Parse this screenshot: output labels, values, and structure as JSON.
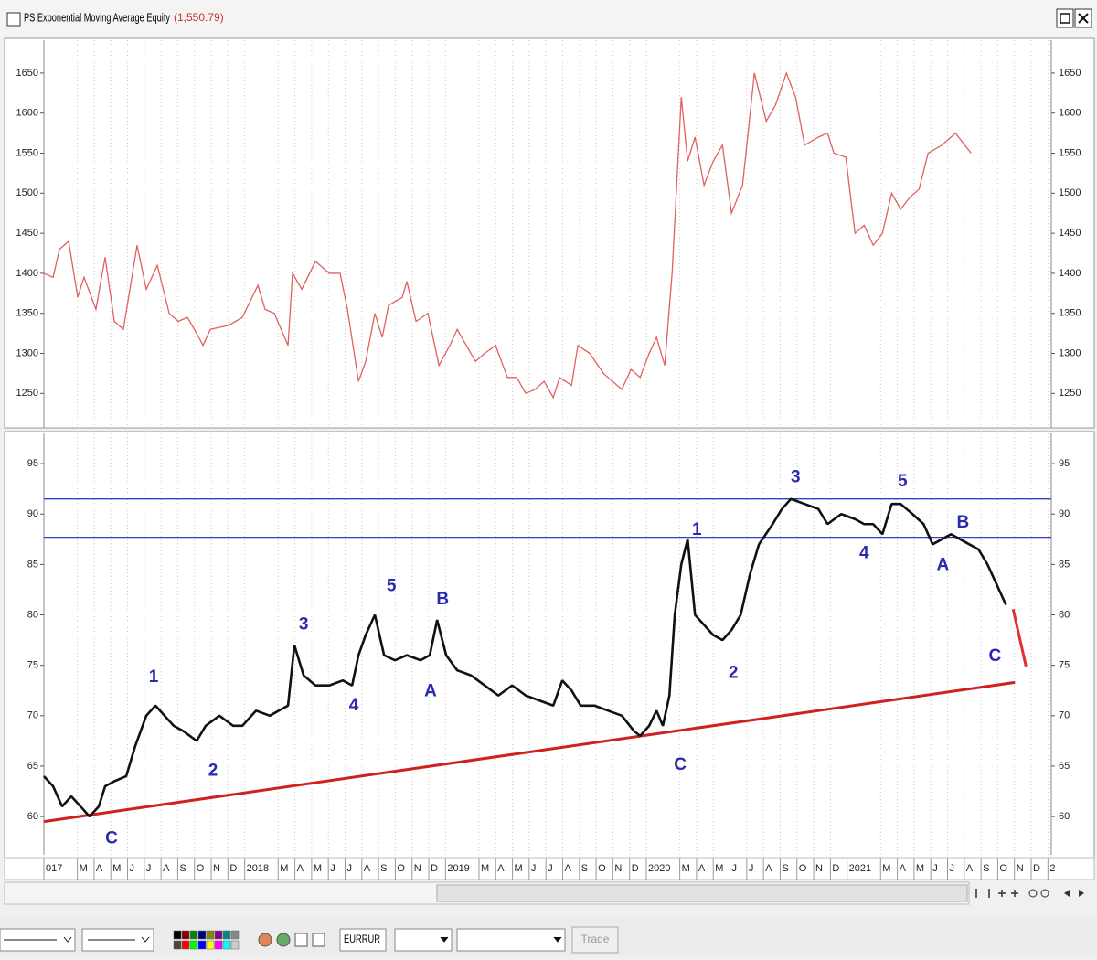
{
  "window": {
    "title": "PS Exponential Moving Average Equity",
    "value_label": "(1,550.79)"
  },
  "toolbar": {
    "symbol": "EURRUR",
    "button": "Trade"
  },
  "chart_data": [
    {
      "type": "line",
      "color": "#e06060",
      "x": [
        0,
        0.55,
        0.93,
        1.48,
        2.02,
        2.4,
        3.11,
        3.66,
        4.21,
        4.75,
        5.57,
        6.12,
        6.78,
        7.49,
        8.03,
        8.58,
        9.13,
        9.51,
        9.95,
        11.04,
        11.86,
        12.79,
        13.22,
        13.77,
        14.59,
        14.86,
        15.41,
        16.23,
        17.05,
        17.7,
        18.14,
        18.8,
        19.23,
        19.78,
        20.22,
        20.6,
        21.42,
        21.69,
        22.24,
        22.95,
        23.61,
        24.26,
        24.7,
        25.79,
        26.34,
        26.99,
        27.7,
        28.25,
        28.8,
        29.34,
        29.89,
        30.44,
        30.82,
        31.53,
        31.91,
        32.62,
        33.44,
        34.54,
        35.08,
        35.63,
        36.17,
        36.61,
        37.1,
        37.54,
        38.09,
        38.47,
        38.91,
        39.45,
        40,
        40.55,
        41.09,
        41.75,
        42.46,
        43.17,
        43.72,
        44.37,
        44.92,
        45.46,
        46.28,
        46.83,
        47.21,
        47.92,
        48.47,
        49.02,
        49.56,
        50.11,
        50.66,
        51.2,
        51.75,
        52.3,
        52.84,
        53.66,
        54.48,
        55.03,
        55.41
      ],
      "values": [
        1400,
        1395,
        1430,
        1440,
        1370,
        1395,
        1355,
        1420,
        1340,
        1330,
        1435,
        1380,
        1410,
        1350,
        1340,
        1345,
        1325,
        1310,
        1330,
        1335,
        1345,
        1385,
        1355,
        1350,
        1310,
        1400,
        1380,
        1415,
        1400,
        1400,
        1355,
        1265,
        1290,
        1350,
        1320,
        1360,
        1370,
        1390,
        1340,
        1350,
        1285,
        1310,
        1330,
        1290,
        1300,
        1310,
        1270,
        1270,
        1250,
        1255,
        1265,
        1245,
        1270,
        1260,
        1310,
        1300,
        1275,
        1255,
        1280,
        1270,
        1300,
        1320,
        1285,
        1400,
        1620,
        1540,
        1570,
        1510,
        1540,
        1560,
        1475,
        1510,
        1650,
        1590,
        1610,
        1650,
        1620,
        1560,
        1570,
        1575,
        1550,
        1545,
        1450,
        1460,
        1435,
        1450,
        1500,
        1480,
        1495,
        1505,
        1550,
        1560,
        1575,
        1560,
        1550
      ],
      "xlim": [
        0,
        60.2
      ],
      "ylim": [
        1207,
        1691
      ],
      "yticks": [
        1250,
        1300,
        1350,
        1400,
        1450,
        1500,
        1550,
        1600,
        1650
      ]
    },
    {
      "type": "price",
      "color": "#111111",
      "x": [
        0,
        0.55,
        1.09,
        1.64,
        2.19,
        2.73,
        3.28,
        3.66,
        4.21,
        4.92,
        5.46,
        6.12,
        6.67,
        7.21,
        7.76,
        8.31,
        9.13,
        9.67,
        10.49,
        11.31,
        11.86,
        12.68,
        13.5,
        14.04,
        14.59,
        14.97,
        15.52,
        16.23,
        17.05,
        17.87,
        18.42,
        18.8,
        19.23,
        19.78,
        20.33,
        20.98,
        21.69,
        22.51,
        23.06,
        23.5,
        24.04,
        24.7,
        25.52,
        26.34,
        27.16,
        27.98,
        28.8,
        29.62,
        30.44,
        30.98,
        31.53,
        32.08,
        32.9,
        33.72,
        34.54,
        35.25,
        35.63,
        36.17,
        36.61,
        36.99,
        37.38,
        37.7,
        38.09,
        38.47,
        38.91,
        39.45,
        40,
        40.55,
        41.09,
        41.64,
        42.19,
        42.73,
        43.55,
        44.1,
        44.64,
        45.46,
        46.28,
        46.83,
        47.65,
        48.47,
        49.02,
        49.56,
        50.11,
        50.66,
        51.2,
        51.91,
        52.57,
        53.11,
        53.66,
        54.21,
        54.75,
        55.3,
        55.85,
        56.39,
        56.94,
        57.49
      ],
      "values": [
        64,
        63,
        61,
        62,
        61,
        60,
        61,
        63,
        63.5,
        64,
        67,
        70,
        71,
        70,
        69,
        68.5,
        67.5,
        69,
        70,
        69,
        69,
        70.5,
        70,
        70.5,
        71,
        77,
        74,
        73,
        73,
        73.5,
        73,
        76,
        78,
        80,
        76,
        75.5,
        76,
        75.5,
        76,
        79.5,
        76,
        74.5,
        74,
        73,
        72,
        73,
        72,
        71.5,
        71,
        73.5,
        72.5,
        71,
        71,
        70.5,
        70,
        68.5,
        68,
        69,
        70.5,
        69,
        72,
        80,
        85,
        87.5,
        80,
        79,
        78,
        77.5,
        78.5,
        80,
        84,
        87,
        89,
        90.5,
        91.5,
        91,
        90.5,
        89,
        90,
        89.5,
        89,
        89,
        88,
        91,
        91,
        90,
        89,
        87,
        87.5,
        88,
        87.5,
        87,
        86.5,
        85,
        83,
        81
      ],
      "xlim": [
        0,
        60.2
      ],
      "ylim": [
        56.2,
        98
      ],
      "yticks": [
        60,
        65,
        70,
        75,
        80,
        85,
        90,
        95
      ],
      "hlines": [
        {
          "value": 91.5,
          "color": "#3040c0"
        },
        {
          "value": 87.7,
          "color": "#3040c0"
        }
      ],
      "trendlines": [
        {
          "x": [
            0,
            58.03
          ],
          "values": [
            59.5,
            73.3
          ],
          "color": "#d02020"
        },
        {
          "x": [
            57.92,
            58.69
          ],
          "values": [
            80.56,
            74.9
          ],
          "color": "#e03030"
        }
      ],
      "annotations": [
        {
          "text": "C",
          "x": 4.04,
          "y": 57.8
        },
        {
          "text": "1",
          "x": 6.56,
          "y": 73.8
        },
        {
          "text": "2",
          "x": 10.11,
          "y": 64.5
        },
        {
          "text": "3",
          "x": 15.52,
          "y": 79.0
        },
        {
          "text": "4",
          "x": 18.52,
          "y": 71.0
        },
        {
          "text": "5",
          "x": 20.77,
          "y": 82.8
        },
        {
          "text": "B",
          "x": 23.83,
          "y": 81.5
        },
        {
          "text": "A",
          "x": 23.11,
          "y": 72.4
        },
        {
          "text": "C",
          "x": 38.03,
          "y": 65.1
        },
        {
          "text": "1",
          "x": 39.02,
          "y": 88.4
        },
        {
          "text": "2",
          "x": 41.2,
          "y": 74.2
        },
        {
          "text": "3",
          "x": 44.92,
          "y": 93.6
        },
        {
          "text": "4",
          "x": 49.02,
          "y": 86.1
        },
        {
          "text": "5",
          "x": 51.31,
          "y": 93.2
        },
        {
          "text": "A",
          "x": 53.72,
          "y": 84.9
        },
        {
          "text": "B",
          "x": 54.92,
          "y": 89.1
        },
        {
          "text": "C",
          "x": 56.83,
          "y": 75.9
        }
      ],
      "xticks": [
        {
          "value": 0,
          "label": "017"
        },
        {
          "value": 2,
          "label": "M"
        },
        {
          "value": 3,
          "label": "A"
        },
        {
          "value": 4,
          "label": "M"
        },
        {
          "value": 5,
          "label": "J"
        },
        {
          "value": 6,
          "label": "J"
        },
        {
          "value": 7,
          "label": "A"
        },
        {
          "value": 8,
          "label": "S"
        },
        {
          "value": 9,
          "label": "O"
        },
        {
          "value": 10,
          "label": "N"
        },
        {
          "value": 11,
          "label": "D"
        },
        {
          "value": 12,
          "label": "2018"
        },
        {
          "value": 14,
          "label": "M"
        },
        {
          "value": 15,
          "label": "A"
        },
        {
          "value": 16,
          "label": "M"
        },
        {
          "value": 17,
          "label": "J"
        },
        {
          "value": 18,
          "label": "J"
        },
        {
          "value": 19,
          "label": "A"
        },
        {
          "value": 20,
          "label": "S"
        },
        {
          "value": 21,
          "label": "O"
        },
        {
          "value": 22,
          "label": "N"
        },
        {
          "value": 23,
          "label": "D"
        },
        {
          "value": 24,
          "label": "2019"
        },
        {
          "value": 26,
          "label": "M"
        },
        {
          "value": 27,
          "label": "A"
        },
        {
          "value": 28,
          "label": "M"
        },
        {
          "value": 29,
          "label": "J"
        },
        {
          "value": 30,
          "label": "J"
        },
        {
          "value": 31,
          "label": "A"
        },
        {
          "value": 32,
          "label": "S"
        },
        {
          "value": 33,
          "label": "O"
        },
        {
          "value": 34,
          "label": "N"
        },
        {
          "value": 35,
          "label": "D"
        },
        {
          "value": 36,
          "label": "2020"
        },
        {
          "value": 38,
          "label": "M"
        },
        {
          "value": 39,
          "label": "A"
        },
        {
          "value": 40,
          "label": "M"
        },
        {
          "value": 41,
          "label": "J"
        },
        {
          "value": 42,
          "label": "J"
        },
        {
          "value": 43,
          "label": "A"
        },
        {
          "value": 44,
          "label": "S"
        },
        {
          "value": 45,
          "label": "O"
        },
        {
          "value": 46,
          "label": "N"
        },
        {
          "value": 47,
          "label": "D"
        },
        {
          "value": 48,
          "label": "2021"
        },
        {
          "value": 50,
          "label": "M"
        },
        {
          "value": 51,
          "label": "A"
        },
        {
          "value": 52,
          "label": "M"
        },
        {
          "value": 53,
          "label": "J"
        },
        {
          "value": 54,
          "label": "J"
        },
        {
          "value": 55,
          "label": "A"
        },
        {
          "value": 56,
          "label": "S"
        },
        {
          "value": 57,
          "label": "O"
        },
        {
          "value": 58,
          "label": "N"
        },
        {
          "value": 59,
          "label": "D"
        },
        {
          "value": 60,
          "label": "2"
        }
      ]
    }
  ]
}
